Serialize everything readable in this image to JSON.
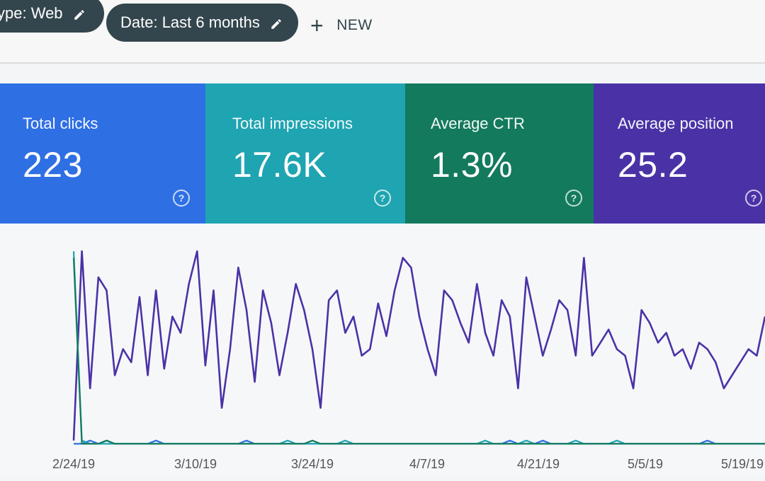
{
  "filters": {
    "type_chip": "ype: Web",
    "date_chip": "Date: Last 6 months",
    "new_label": "NEW"
  },
  "cards": [
    {
      "label": "Total clicks",
      "value": "223",
      "color": "#2f6fe4"
    },
    {
      "label": "Total impressions",
      "value": "17.6K",
      "color": "#1fa4b1"
    },
    {
      "label": "Average CTR",
      "value": "1.3%",
      "color": "#137a5d"
    },
    {
      "label": "Average position",
      "value": "25.2",
      "color": "#4a32a6"
    }
  ],
  "chart_data": {
    "type": "line",
    "x_ticks": [
      "2/24/19",
      "3/10/19",
      "3/24/19",
      "4/7/19",
      "4/21/19",
      "5/5/19",
      "5/19/19"
    ],
    "series": [
      {
        "color": "#4a32a6",
        "values": [
          2,
          60,
          18,
          52,
          48,
          22,
          30,
          26,
          46,
          22,
          48,
          24,
          40,
          35,
          50,
          60,
          25,
          48,
          12,
          30,
          55,
          42,
          20,
          48,
          38,
          22,
          35,
          50,
          42,
          30,
          12,
          45,
          48,
          35,
          40,
          28,
          30,
          44,
          34,
          48,
          58,
          55,
          40,
          30,
          22,
          48,
          45,
          38,
          32,
          50,
          35,
          28,
          45,
          40,
          18,
          52,
          40,
          28,
          36,
          45,
          42,
          28,
          58,
          28,
          32,
          36,
          30,
          28,
          18,
          42,
          38,
          32,
          35,
          28,
          30,
          24,
          32,
          30,
          26,
          18,
          22,
          26,
          30,
          28,
          40
        ]
      },
      {
        "color": "#2f6fe4",
        "values": [
          1,
          1,
          2,
          1,
          2,
          1,
          1,
          1,
          1,
          1,
          2,
          1,
          1,
          1,
          1,
          1,
          1,
          1,
          1,
          1,
          1,
          2,
          1,
          1,
          1,
          1,
          1,
          1,
          1,
          1,
          1,
          1,
          1,
          1,
          1,
          1,
          1,
          1,
          1,
          1,
          1,
          1,
          1,
          1,
          1,
          1,
          1,
          1,
          1,
          1,
          1,
          1,
          1,
          2,
          1,
          1,
          1,
          2,
          1,
          1,
          1,
          1,
          1,
          1,
          1,
          1,
          1,
          1,
          1,
          1,
          1,
          1,
          1,
          1,
          1,
          1,
          1,
          2,
          1,
          1,
          1,
          1,
          1,
          1,
          1
        ]
      },
      {
        "color": "#1fa4b1",
        "values": [
          60,
          2,
          1,
          1,
          1,
          1,
          1,
          1,
          1,
          1,
          1,
          1,
          1,
          1,
          1,
          1,
          1,
          1,
          1,
          1,
          1,
          1,
          1,
          1,
          1,
          1,
          2,
          1,
          1,
          1,
          1,
          1,
          1,
          2,
          1,
          1,
          1,
          1,
          1,
          1,
          1,
          1,
          1,
          1,
          1,
          1,
          1,
          1,
          1,
          1,
          2,
          1,
          1,
          1,
          1,
          2,
          1,
          1,
          1,
          1,
          1,
          2,
          1,
          1,
          1,
          1,
          2,
          1,
          1,
          1,
          1,
          1,
          1,
          1,
          1,
          1,
          1,
          1,
          1,
          1,
          1,
          1,
          1,
          1,
          1
        ]
      },
      {
        "color": "#137a5d",
        "values": [
          58,
          1,
          1,
          1,
          2,
          1,
          1,
          1,
          1,
          1,
          1,
          1,
          1,
          1,
          1,
          1,
          1,
          1,
          1,
          1,
          1,
          1,
          1,
          1,
          1,
          1,
          1,
          1,
          1,
          2,
          1,
          1,
          1,
          1,
          1,
          1,
          1,
          1,
          1,
          1,
          1,
          1,
          1,
          1,
          1,
          1,
          1,
          1,
          1,
          1,
          1,
          1,
          1,
          1,
          1,
          1,
          1,
          1,
          1,
          1,
          1,
          1,
          1,
          1,
          1,
          1,
          1,
          1,
          1,
          1,
          1,
          1,
          1,
          1,
          1,
          1,
          1,
          1,
          1,
          1,
          1,
          1,
          1,
          1,
          1
        ]
      }
    ],
    "grid": false
  }
}
